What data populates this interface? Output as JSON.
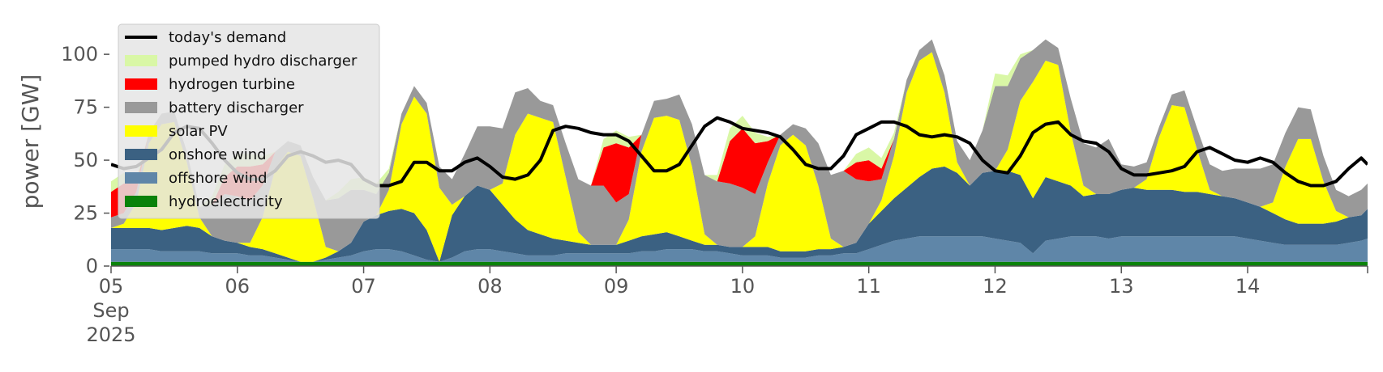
{
  "chart_data": {
    "type": "area",
    "title": "",
    "xlabel": "",
    "ylabel": "power [GW]",
    "ylim": [
      0,
      118
    ],
    "xlim": [
      0,
      9.95
    ],
    "x_unit": "days since 05 Sep 2025",
    "x_ticks": [
      {
        "label": "05",
        "sub": [
          "Sep",
          "2025"
        ],
        "day": 0
      },
      {
        "label": "06",
        "day": 1
      },
      {
        "label": "07",
        "day": 2
      },
      {
        "label": "08",
        "day": 3
      },
      {
        "label": "09",
        "day": 4
      },
      {
        "label": "10",
        "day": 5
      },
      {
        "label": "11",
        "day": 6
      },
      {
        "label": "12",
        "day": 7
      },
      {
        "label": "13",
        "day": 8
      },
      {
        "label": "14",
        "day": 9
      }
    ],
    "y_ticks": [
      0,
      25,
      50,
      75,
      100
    ],
    "grid": false,
    "legend_position": "top-left",
    "legend": [
      {
        "name": "today's demand",
        "color": "#000000",
        "kind": "line"
      },
      {
        "name": "pumped hydro discharger",
        "color": "#d9f7a6",
        "kind": "patch"
      },
      {
        "name": "hydrogen turbine",
        "color": "#ff0000",
        "kind": "patch"
      },
      {
        "name": "battery discharger",
        "color": "#999999",
        "kind": "patch"
      },
      {
        "name": "solar PV",
        "color": "#ffff00",
        "kind": "patch"
      },
      {
        "name": "onshore wind",
        "color": "#3b6182",
        "kind": "patch"
      },
      {
        "name": "offshore wind",
        "color": "#5f86a8",
        "kind": "patch"
      },
      {
        "name": "hydroelectricity",
        "color": "#0a820a",
        "kind": "patch"
      }
    ],
    "stack_order": [
      "hydroelectricity",
      "offshore wind",
      "onshore wind",
      "solar PV",
      "battery discharger",
      "hydrogen turbine",
      "pumped hydro discharger"
    ],
    "x": [
      0,
      0.1,
      0.2,
      0.3,
      0.4,
      0.5,
      0.6,
      0.7,
      0.8,
      0.9,
      1,
      1.1,
      1.2,
      1.3,
      1.4,
      1.5,
      1.6,
      1.7,
      1.8,
      1.9,
      2,
      2.1,
      2.2,
      2.3,
      2.4,
      2.5,
      2.6,
      2.7,
      2.8,
      2.9,
      3,
      3.1,
      3.2,
      3.3,
      3.4,
      3.5,
      3.6,
      3.7,
      3.8,
      3.9,
      4,
      4.1,
      4.2,
      4.3,
      4.4,
      4.5,
      4.6,
      4.7,
      4.8,
      4.9,
      5,
      5.1,
      5.2,
      5.3,
      5.4,
      5.5,
      5.6,
      5.7,
      5.8,
      5.9,
      6,
      6.1,
      6.2,
      6.3,
      6.4,
      6.5,
      6.6,
      6.7,
      6.8,
      6.9,
      7,
      7.1,
      7.2,
      7.3,
      7.4,
      7.5,
      7.6,
      7.7,
      7.8,
      7.9,
      8,
      8.1,
      8.2,
      8.3,
      8.4,
      8.5,
      8.6,
      8.7,
      8.8,
      8.9,
      9,
      9.1,
      9.2,
      9.3,
      9.4,
      9.5,
      9.6,
      9.7,
      9.8,
      9.9,
      9.95
    ],
    "series": [
      {
        "name": "hydroelectricity",
        "values": [
          2,
          2,
          2,
          2,
          2,
          2,
          2,
          2,
          2,
          2,
          2,
          2,
          2,
          2,
          2,
          2,
          2,
          2,
          2,
          2,
          2,
          2,
          2,
          2,
          2,
          2,
          2,
          2,
          2,
          2,
          2,
          2,
          2,
          2,
          2,
          2,
          2,
          2,
          2,
          2,
          2,
          2,
          2,
          2,
          2,
          2,
          2,
          2,
          2,
          2,
          2,
          2,
          2,
          2,
          2,
          2,
          2,
          2,
          2,
          2,
          2,
          2,
          2,
          2,
          2,
          2,
          2,
          2,
          2,
          2,
          2,
          2,
          2,
          2,
          2,
          2,
          2,
          2,
          2,
          2,
          2,
          2,
          2,
          2,
          2,
          2,
          2,
          2,
          2,
          2,
          2,
          2,
          2,
          2,
          2,
          2,
          2,
          2,
          2,
          2,
          2
        ]
      },
      {
        "name": "offshore wind",
        "values": [
          6,
          6,
          6,
          6,
          5,
          5,
          5,
          5,
          4,
          4,
          4,
          3,
          3,
          2,
          1,
          0,
          0,
          1,
          2,
          3,
          5,
          6,
          6,
          5,
          3,
          1,
          0,
          2,
          5,
          6,
          6,
          5,
          4,
          3,
          3,
          3,
          4,
          4,
          4,
          4,
          4,
          4,
          5,
          5,
          6,
          6,
          6,
          5,
          5,
          4,
          3,
          3,
          3,
          2,
          2,
          2,
          3,
          3,
          4,
          4,
          6,
          8,
          10,
          11,
          12,
          12,
          12,
          12,
          12,
          12,
          11,
          10,
          9,
          4,
          10,
          11,
          12,
          12,
          12,
          11,
          12,
          12,
          12,
          12,
          12,
          12,
          12,
          12,
          12,
          12,
          11,
          10,
          9,
          8,
          8,
          8,
          8,
          8,
          9,
          10,
          11
        ]
      },
      {
        "name": "onshore wind",
        "values": [
          10,
          10,
          10,
          10,
          10,
          11,
          12,
          11,
          8,
          6,
          5,
          4,
          3,
          2,
          1,
          0,
          0,
          1,
          3,
          6,
          14,
          16,
          18,
          20,
          20,
          14,
          0,
          20,
          26,
          30,
          28,
          22,
          16,
          12,
          10,
          8,
          6,
          5,
          4,
          4,
          4,
          6,
          7,
          8,
          8,
          6,
          4,
          3,
          3,
          3,
          4,
          4,
          4,
          3,
          3,
          3,
          3,
          3,
          3,
          5,
          12,
          16,
          20,
          24,
          28,
          32,
          33,
          30,
          24,
          30,
          32,
          33,
          32,
          26,
          30,
          27,
          24,
          19,
          20,
          21,
          22,
          23,
          22,
          22,
          22,
          21,
          21,
          20,
          19,
          18,
          17,
          16,
          14,
          12,
          10,
          10,
          10,
          11,
          12,
          12,
          14
        ]
      },
      {
        "name": "solar PV",
        "values": [
          0,
          2,
          12,
          40,
          50,
          50,
          30,
          5,
          0,
          0,
          0,
          2,
          15,
          40,
          50,
          50,
          30,
          5,
          0,
          0,
          0,
          0,
          10,
          40,
          55,
          55,
          35,
          5,
          0,
          0,
          0,
          10,
          40,
          55,
          55,
          55,
          30,
          5,
          0,
          0,
          0,
          10,
          40,
          55,
          55,
          55,
          35,
          5,
          0,
          0,
          0,
          5,
          30,
          50,
          55,
          50,
          30,
          5,
          0,
          0,
          0,
          5,
          20,
          45,
          55,
          55,
          35,
          5,
          0,
          0,
          0,
          10,
          35,
          55,
          55,
          55,
          25,
          5,
          0,
          0,
          0,
          0,
          5,
          25,
          40,
          40,
          20,
          2,
          0,
          0,
          0,
          0,
          5,
          25,
          40,
          40,
          20,
          5,
          0,
          0,
          0
        ]
      },
      {
        "name": "battery discharger",
        "values": [
          5,
          5,
          5,
          5,
          5,
          5,
          5,
          5,
          15,
          22,
          22,
          20,
          15,
          8,
          5,
          5,
          10,
          22,
          25,
          25,
          15,
          10,
          8,
          5,
          5,
          5,
          10,
          12,
          20,
          28,
          30,
          26,
          20,
          12,
          8,
          8,
          16,
          25,
          28,
          28,
          20,
          12,
          8,
          8,
          8,
          12,
          20,
          28,
          30,
          30,
          28,
          20,
          10,
          5,
          5,
          8,
          20,
          30,
          36,
          30,
          20,
          10,
          8,
          6,
          5,
          6,
          8,
          10,
          12,
          20,
          40,
          30,
          20,
          15,
          10,
          8,
          16,
          20,
          22,
          26,
          12,
          10,
          8,
          5,
          5,
          8,
          10,
          12,
          12,
          14,
          16,
          18,
          18,
          16,
          15,
          14,
          12,
          10,
          10,
          12,
          12
        ]
      },
      {
        "name": "hydrogen turbine",
        "values": [
          12,
          14,
          4,
          0,
          0,
          0,
          0,
          0,
          0,
          8,
          14,
          16,
          10,
          0,
          0,
          0,
          0,
          0,
          0,
          0,
          0,
          0,
          0,
          0,
          0,
          0,
          0,
          0,
          0,
          0,
          0,
          0,
          0,
          0,
          0,
          0,
          0,
          0,
          0,
          18,
          28,
          22,
          0,
          0,
          0,
          0,
          0,
          0,
          0,
          20,
          28,
          24,
          10,
          0,
          0,
          0,
          0,
          0,
          0,
          8,
          10,
          5,
          0,
          0,
          0,
          0,
          0,
          0,
          0,
          0,
          0,
          0,
          0,
          0,
          0,
          0,
          0,
          0,
          0,
          0,
          0,
          0,
          0,
          0,
          0,
          0,
          0,
          0,
          0,
          0,
          0,
          0,
          0,
          0,
          0,
          0,
          0,
          0,
          0,
          0,
          0
        ]
      },
      {
        "name": "pumped hydro discharger",
        "values": [
          5,
          5,
          3,
          0,
          0,
          0,
          0,
          0,
          4,
          6,
          6,
          6,
          4,
          0,
          0,
          0,
          0,
          0,
          3,
          5,
          6,
          5,
          2,
          0,
          0,
          0,
          0,
          0,
          0,
          0,
          0,
          0,
          0,
          0,
          0,
          0,
          0,
          0,
          0,
          4,
          6,
          5,
          0,
          0,
          0,
          0,
          0,
          0,
          3,
          6,
          6,
          5,
          2,
          0,
          0,
          0,
          0,
          0,
          0,
          4,
          6,
          5,
          3,
          0,
          0,
          0,
          0,
          0,
          0,
          0,
          6,
          5,
          2,
          0,
          0,
          0,
          0,
          0,
          0,
          0,
          0,
          0,
          0,
          0,
          0,
          0,
          0,
          0,
          0,
          0,
          0,
          0,
          0,
          0,
          0,
          0,
          0,
          0,
          0,
          0,
          0
        ]
      },
      {
        "name": "today's demand",
        "values": [
          48,
          46,
          47,
          51,
          55,
          63,
          66,
          65,
          58,
          50,
          44,
          41,
          41,
          45,
          52,
          54,
          52,
          49,
          50,
          48,
          41,
          38,
          38,
          40,
          49,
          49,
          45,
          45,
          49,
          51,
          47,
          42,
          41,
          43,
          50,
          64,
          66,
          65,
          63,
          62,
          62,
          59,
          52,
          45,
          45,
          48,
          57,
          66,
          70,
          68,
          65,
          64,
          63,
          61,
          55,
          48,
          46,
          46,
          52,
          62,
          65,
          68,
          68,
          66,
          62,
          61,
          62,
          61,
          58,
          50,
          45,
          44,
          52,
          63,
          67,
          68,
          62,
          59,
          58,
          54,
          46,
          43,
          43,
          44,
          45,
          47,
          54,
          56,
          53,
          50,
          49,
          51,
          49,
          44,
          40,
          38,
          38,
          40,
          46,
          51,
          48
        ]
      }
    ]
  }
}
